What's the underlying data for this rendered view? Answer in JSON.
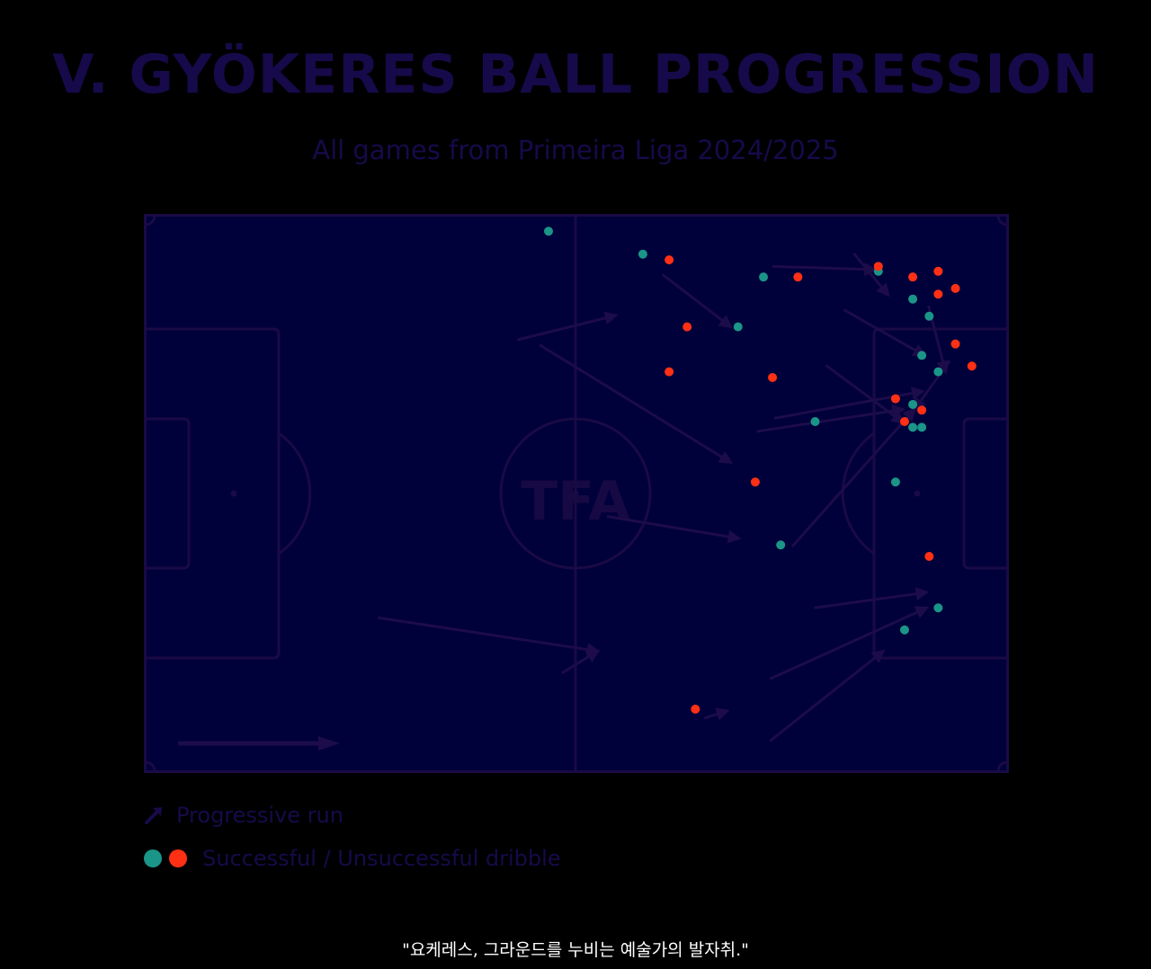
{
  "header": {
    "title": "V. GYÖKERES BALL PROGRESSION",
    "subtitle": "All games from Primeira Liga 2024/2025"
  },
  "pitch": {
    "watermark": "TFA",
    "colors": {
      "field": "#00003a",
      "lines": "#1a0a45",
      "run": "#1d0c4a"
    }
  },
  "legend": {
    "run_icon": "arrow-up-right-icon",
    "run_label": "Progressive run",
    "dribble_label": "Successful / Unsuccessful dribble"
  },
  "caption": "\"요케레스, 그라운드를 누비는 예술가의 발자취.\"",
  "chart_data": {
    "type": "scatter",
    "title": "V. GYÖKERES BALL PROGRESSION",
    "subtitle": "All games from Primeira Liga 2024/2025",
    "xlim": [
      0,
      105
    ],
    "ylim": [
      0,
      68
    ],
    "y_axis_direction": "top-to-bottom",
    "attack_direction": "left-to-right",
    "colors": {
      "successful": "#1a9588",
      "unsuccessful": "#ff3014"
    },
    "series": [
      {
        "name": "Progressive run",
        "type": "arrows",
        "values": [
          {
            "x0": 45.3,
            "y0": 15.2,
            "x1": 57.3,
            "y1": 12.2
          },
          {
            "x0": 48.0,
            "y0": 15.8,
            "x1": 71.3,
            "y1": 30.2
          },
          {
            "x0": 56.2,
            "y0": 36.8,
            "x1": 72.3,
            "y1": 39.5
          },
          {
            "x0": 28.3,
            "y0": 49.2,
            "x1": 55.1,
            "y1": 53.3
          },
          {
            "x0": 50.7,
            "y0": 56.0,
            "x1": 55.1,
            "y1": 53.3
          },
          {
            "x0": 68.1,
            "y0": 61.5,
            "x1": 70.9,
            "y1": 60.6
          },
          {
            "x0": 76.4,
            "y0": 6.2,
            "x1": 88.9,
            "y1": 6.6
          },
          {
            "x0": 63.0,
            "y0": 7.2,
            "x1": 71.3,
            "y1": 13.6
          },
          {
            "x0": 86.3,
            "y0": 4.6,
            "x1": 90.5,
            "y1": 9.7
          },
          {
            "x0": 85.1,
            "y0": 11.5,
            "x1": 94.9,
            "y1": 17.1
          },
          {
            "x0": 95.4,
            "y0": 11.0,
            "x1": 97.5,
            "y1": 19.1
          },
          {
            "x0": 82.9,
            "y0": 18.3,
            "x1": 92.3,
            "y1": 25.3
          },
          {
            "x0": 76.6,
            "y0": 24.8,
            "x1": 94.7,
            "y1": 21.5
          },
          {
            "x0": 74.5,
            "y0": 26.4,
            "x1": 92.3,
            "y1": 23.7
          },
          {
            "x0": 98.0,
            "y0": 17.8,
            "x1": 93.7,
            "y1": 23.7
          },
          {
            "x0": 78.8,
            "y0": 40.5,
            "x1": 93.7,
            "y1": 23.7
          },
          {
            "x0": 81.5,
            "y0": 48.0,
            "x1": 95.2,
            "y1": 46.1
          },
          {
            "x0": 76.1,
            "y0": 56.7,
            "x1": 95.2,
            "y1": 48.0
          },
          {
            "x0": 76.1,
            "y0": 64.3,
            "x1": 89.9,
            "y1": 53.3
          }
        ]
      },
      {
        "name": "Successful dribble",
        "values": [
          {
            "x": 49.1,
            "y": 1.9
          },
          {
            "x": 60.6,
            "y": 4.7
          },
          {
            "x": 75.3,
            "y": 7.5
          },
          {
            "x": 72.2,
            "y": 13.6
          },
          {
            "x": 89.3,
            "y": 6.8
          },
          {
            "x": 93.5,
            "y": 10.2
          },
          {
            "x": 95.5,
            "y": 12.3
          },
          {
            "x": 94.6,
            "y": 17.1
          },
          {
            "x": 96.6,
            "y": 19.1
          },
          {
            "x": 93.5,
            "y": 23.1
          },
          {
            "x": 93.5,
            "y": 25.9
          },
          {
            "x": 94.6,
            "y": 25.9
          },
          {
            "x": 81.6,
            "y": 25.2
          },
          {
            "x": 91.4,
            "y": 32.6
          },
          {
            "x": 77.4,
            "y": 40.3
          },
          {
            "x": 96.6,
            "y": 48.0
          },
          {
            "x": 92.5,
            "y": 50.7
          }
        ]
      },
      {
        "name": "Unsuccessful dribble",
        "values": [
          {
            "x": 63.8,
            "y": 5.4
          },
          {
            "x": 79.5,
            "y": 7.5
          },
          {
            "x": 89.3,
            "y": 6.2
          },
          {
            "x": 93.5,
            "y": 7.5
          },
          {
            "x": 96.6,
            "y": 6.8
          },
          {
            "x": 98.7,
            "y": 8.9
          },
          {
            "x": 96.6,
            "y": 9.6
          },
          {
            "x": 66.0,
            "y": 13.6
          },
          {
            "x": 63.8,
            "y": 19.1
          },
          {
            "x": 76.4,
            "y": 19.8
          },
          {
            "x": 98.7,
            "y": 15.7
          },
          {
            "x": 100.7,
            "y": 18.4
          },
          {
            "x": 91.4,
            "y": 22.4
          },
          {
            "x": 94.6,
            "y": 23.8
          },
          {
            "x": 92.5,
            "y": 25.2
          },
          {
            "x": 74.3,
            "y": 32.6
          },
          {
            "x": 95.5,
            "y": 41.7
          },
          {
            "x": 67.0,
            "y": 60.4
          }
        ]
      }
    ]
  }
}
